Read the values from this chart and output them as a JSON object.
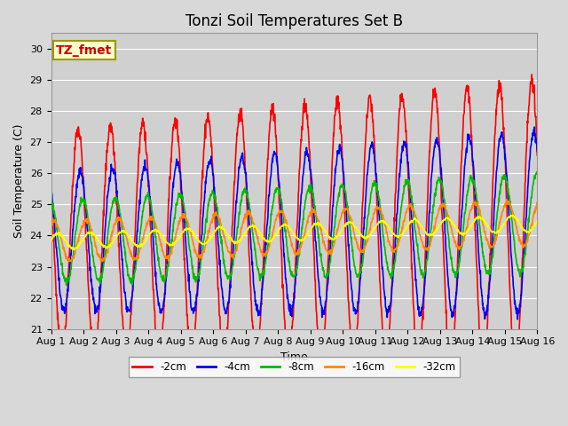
{
  "title": "Tonzi Soil Temperatures Set B",
  "xlabel": "Time",
  "ylabel": "Soil Temperature (C)",
  "ylim": [
    21.0,
    30.5
  ],
  "yticks": [
    21.0,
    22.0,
    23.0,
    24.0,
    25.0,
    26.0,
    27.0,
    28.0,
    29.0,
    30.0
  ],
  "fig_bg_color": "#d8d8d8",
  "plot_bg_color": "#d0d0d0",
  "legend_label": "TZ_fmet",
  "legend_bg": "#ffffcc",
  "legend_border": "#999900",
  "series_colors": [
    "#ff0000",
    "#0000ff",
    "#00bb00",
    "#ff8800",
    "#ffff00"
  ],
  "series_labels": [
    "-2cm",
    "-4cm",
    "-8cm",
    "-16cm",
    "-32cm"
  ],
  "n_days": 15,
  "points_per_day": 96,
  "base_temp": 23.8,
  "trend_slope": 0.04,
  "amplitudes": [
    3.5,
    2.2,
    1.3,
    0.65,
    0.25
  ],
  "phase_lags_hours": [
    0.0,
    1.5,
    3.5,
    6.0,
    9.0
  ],
  "amp_growth": [
    0.07,
    0.05,
    0.02,
    0.005,
    0.001
  ],
  "xtick_labels": [
    "Aug 1",
    "Aug 2",
    "Aug 3",
    "Aug 4",
    "Aug 5",
    "Aug 6",
    "Aug 7",
    "Aug 8",
    "Aug 9",
    "Aug 10",
    "Aug 11",
    "Aug 12",
    "Aug 13",
    "Aug 14",
    "Aug 15",
    "Aug 16"
  ],
  "line_width": 1.2,
  "grid_color": "#bbbbbb",
  "title_fontsize": 12,
  "axis_fontsize": 9,
  "tick_fontsize": 8
}
